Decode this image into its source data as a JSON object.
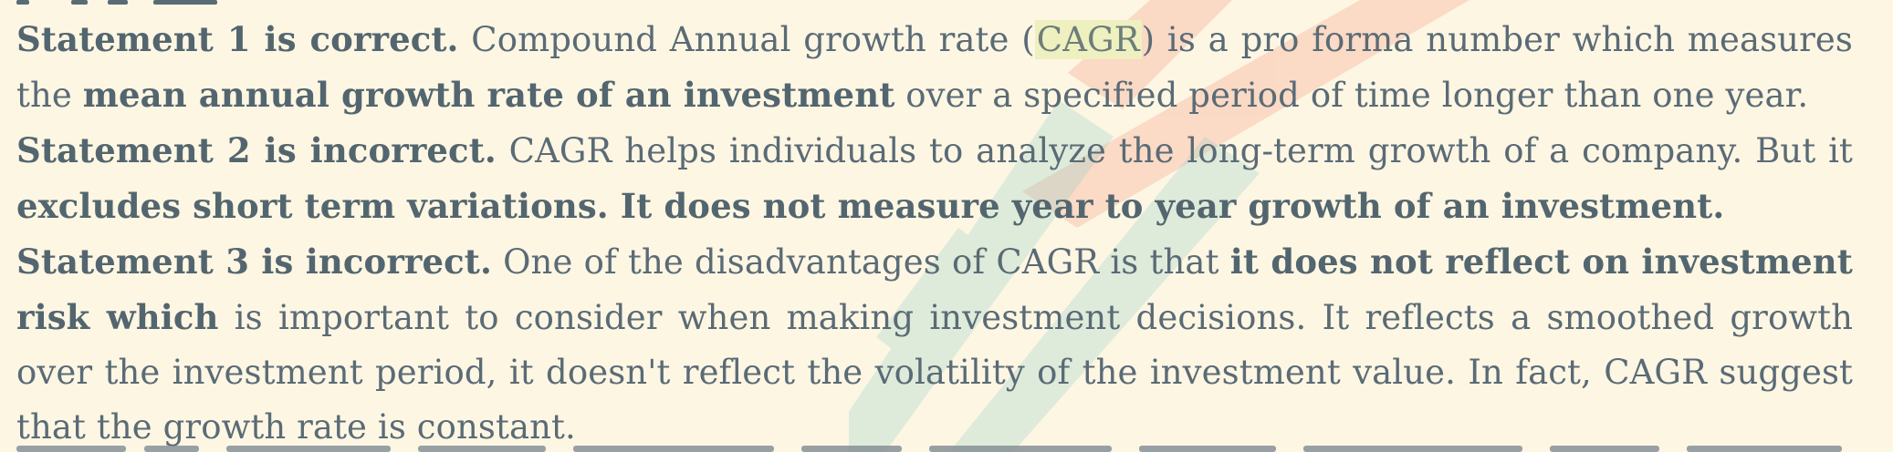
{
  "paragraphs": [
    {
      "id": "statement-1",
      "s1_label": "Statement 1 is correct.",
      "s1_t1": " Compound Annual growth rate (",
      "s1_hl": "CAGR",
      "s1_t2": ") is a pro forma number which measures the ",
      "s1_b1": "mean annual growth rate of an investment",
      "s1_t3": " over a specified period of time longer than one year."
    },
    {
      "id": "statement-2",
      "s2_label": "Statement 2 is incorrect.",
      "s2_t1": " CAGR helps individuals to analyze the long-term growth of a company. But it ",
      "s2_b1": "excludes short term variations. It does not measure year to year growth of an investment."
    },
    {
      "id": "statement-3",
      "s3_label": "Statement 3 is incorrect.",
      "s3_t1": " One of the disadvantages of CAGR is that ",
      "s3_b1": "it does not reflect on investment risk which",
      "s3_t2": " is important to consider when making investment decisions. It reflects a smoothed growth over the investment period, it doesn't reflect the volatility of the investment value. In fact, CAGR suggest that the growth rate is constant."
    }
  ],
  "colors": {
    "background": "#fdf6e3",
    "text": "#5a6b76",
    "highlight": "#eef0c0",
    "watermark_red": "#f6b9a8",
    "watermark_teal": "#a9d6cf"
  }
}
